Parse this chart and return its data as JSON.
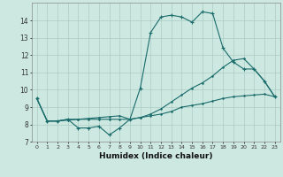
{
  "title": "",
  "xlabel": "Humidex (Indice chaleur)",
  "bg_color": "#cce8e0",
  "line_color": "#1a6b6b",
  "grid_color": "#aaccc4",
  "xlim": [
    -0.5,
    23.5
  ],
  "ylim": [
    7,
    15
  ],
  "yticks": [
    7,
    8,
    9,
    10,
    11,
    12,
    13,
    14
  ],
  "xticks": [
    0,
    1,
    2,
    3,
    4,
    5,
    6,
    7,
    8,
    9,
    10,
    11,
    12,
    13,
    14,
    15,
    16,
    17,
    18,
    19,
    20,
    21,
    22,
    23
  ],
  "line1_x": [
    0,
    1,
    2,
    3,
    4,
    5,
    6,
    7,
    8,
    9,
    10,
    11,
    12,
    13,
    14,
    15,
    16,
    17,
    18,
    19,
    20,
    21,
    22,
    23
  ],
  "line1_y": [
    9.5,
    8.2,
    8.2,
    8.3,
    7.8,
    7.8,
    7.9,
    7.4,
    7.8,
    8.3,
    10.1,
    13.3,
    14.2,
    14.3,
    14.2,
    13.9,
    14.5,
    14.4,
    12.4,
    11.6,
    11.2,
    11.2,
    10.5,
    9.6
  ],
  "line2_x": [
    0,
    1,
    2,
    3,
    4,
    5,
    6,
    7,
    8,
    9,
    10,
    11,
    12,
    13,
    14,
    15,
    16,
    17,
    18,
    19,
    20,
    21,
    22,
    23
  ],
  "line2_y": [
    9.5,
    8.2,
    8.2,
    8.25,
    8.3,
    8.35,
    8.4,
    8.45,
    8.5,
    8.3,
    8.4,
    8.5,
    8.6,
    8.75,
    9.0,
    9.1,
    9.2,
    9.35,
    9.5,
    9.6,
    9.65,
    9.7,
    9.75,
    9.6
  ],
  "line3_x": [
    0,
    1,
    2,
    3,
    4,
    5,
    6,
    7,
    8,
    9,
    10,
    11,
    12,
    13,
    14,
    15,
    16,
    17,
    18,
    19,
    20,
    21,
    22,
    23
  ],
  "line3_y": [
    9.5,
    8.2,
    8.2,
    8.3,
    8.3,
    8.3,
    8.3,
    8.3,
    8.3,
    8.3,
    8.4,
    8.6,
    8.9,
    9.3,
    9.7,
    10.1,
    10.4,
    10.8,
    11.3,
    11.7,
    11.8,
    11.2,
    10.5,
    9.6
  ]
}
